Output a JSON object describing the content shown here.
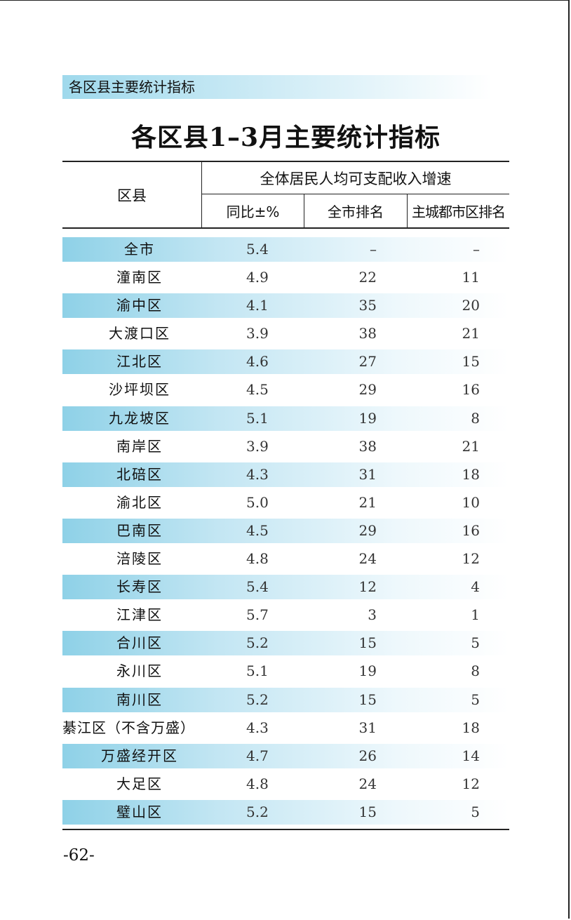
{
  "section_banner": "各区县主要统计指标",
  "table_title": "各区县1–3月主要统计指标",
  "header": {
    "district": "区县",
    "group": "全体居民人均可支配收入增速",
    "yoy": "同比±%",
    "city_rank": "全市排名",
    "main_rank": "主城都市区排名"
  },
  "rows": [
    {
      "name": "全市",
      "yoy": "5.4",
      "city_rank": "–",
      "main_rank": "–"
    },
    {
      "name": "潼南区",
      "yoy": "4.9",
      "city_rank": "22",
      "main_rank": "11"
    },
    {
      "name": "渝中区",
      "yoy": "4.1",
      "city_rank": "35",
      "main_rank": "20"
    },
    {
      "name": "大渡口区",
      "yoy": "3.9",
      "city_rank": "38",
      "main_rank": "21"
    },
    {
      "name": "江北区",
      "yoy": "4.6",
      "city_rank": "27",
      "main_rank": "15"
    },
    {
      "name": "沙坪坝区",
      "yoy": "4.5",
      "city_rank": "29",
      "main_rank": "16"
    },
    {
      "name": "九龙坡区",
      "yoy": "5.1",
      "city_rank": "19",
      "main_rank": "8"
    },
    {
      "name": "南岸区",
      "yoy": "3.9",
      "city_rank": "38",
      "main_rank": "21"
    },
    {
      "name": "北碚区",
      "yoy": "4.3",
      "city_rank": "31",
      "main_rank": "18"
    },
    {
      "name": "渝北区",
      "yoy": "5.0",
      "city_rank": "21",
      "main_rank": "10"
    },
    {
      "name": "巴南区",
      "yoy": "4.5",
      "city_rank": "29",
      "main_rank": "16"
    },
    {
      "name": "涪陵区",
      "yoy": "4.8",
      "city_rank": "24",
      "main_rank": "12"
    },
    {
      "name": "长寿区",
      "yoy": "5.4",
      "city_rank": "12",
      "main_rank": "4"
    },
    {
      "name": "江津区",
      "yoy": "5.7",
      "city_rank": "3",
      "main_rank": "1"
    },
    {
      "name": "合川区",
      "yoy": "5.2",
      "city_rank": "15",
      "main_rank": "5"
    },
    {
      "name": "永川区",
      "yoy": "5.1",
      "city_rank": "19",
      "main_rank": "8"
    },
    {
      "name": "南川区",
      "yoy": "5.2",
      "city_rank": "15",
      "main_rank": "5"
    },
    {
      "name": "綦江区（不含万盛）",
      "yoy": "4.3",
      "city_rank": "31",
      "main_rank": "18"
    },
    {
      "name": "万盛经开区",
      "yoy": "4.7",
      "city_rank": "26",
      "main_rank": "14"
    },
    {
      "name": "大足区",
      "yoy": "4.8",
      "city_rank": "24",
      "main_rank": "12"
    },
    {
      "name": "璧山区",
      "yoy": "5.2",
      "city_rank": "15",
      "main_rank": "5"
    }
  ],
  "page_number": "-62-"
}
